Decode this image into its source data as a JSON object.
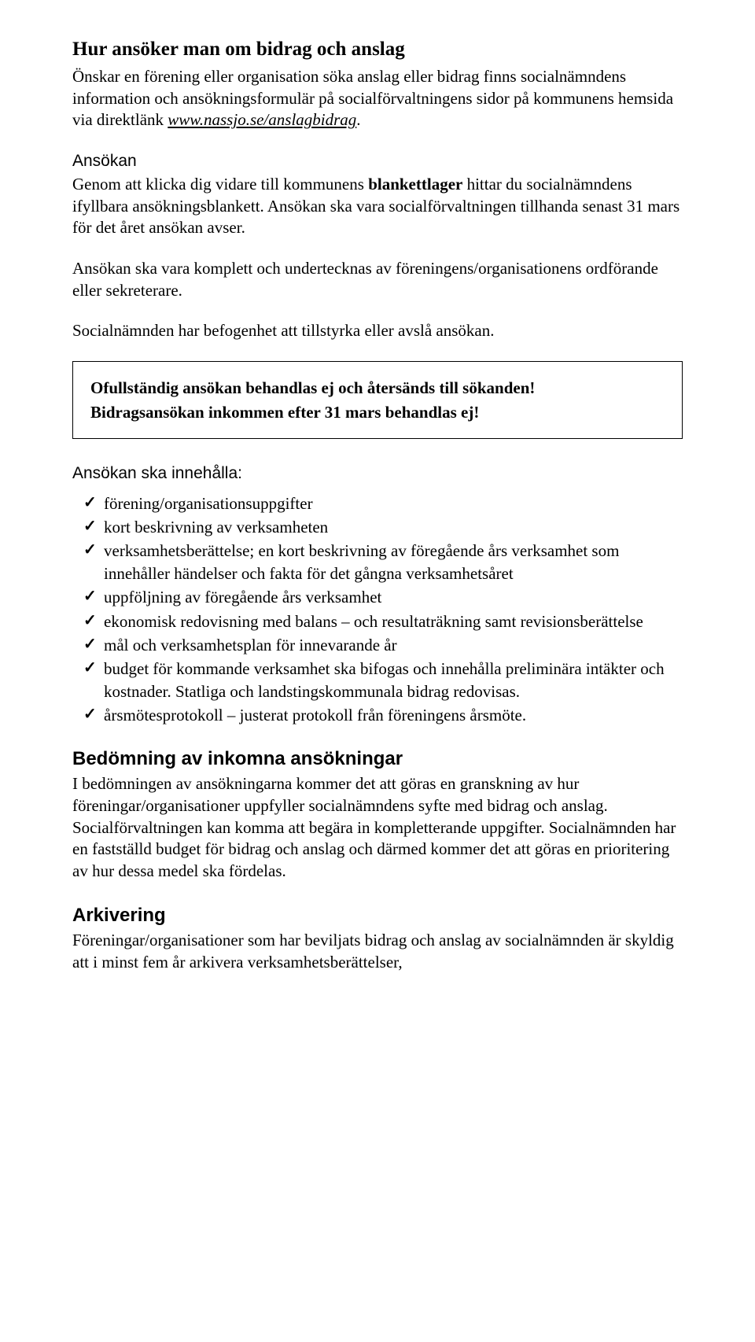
{
  "h1": "Hur ansöker man om bidrag och anslag",
  "intro": {
    "p1_a": "Önskar en förening eller organisation söka anslag eller bidrag finns socialnämndens information och ansökningsformulär på socialförvaltningens sidor på kommunens hemsida via direktlänk ",
    "link": "www.nassjo.se/anslagbidrag",
    "p1_b": "."
  },
  "ansokan": {
    "heading": "Ansökan",
    "p1_a": "Genom att klicka dig vidare till kommunens ",
    "bold1": "blankettlager",
    "p1_b": " hittar du socialnämndens ifyllbara ansökningsblankett. Ansökan ska vara socialförvaltningen tillhanda senast 31 mars för det året ansökan avser.",
    "p2": "Ansökan ska vara komplett och undertecknas av föreningens/organisationens ordförande eller sekreterare.",
    "p3": "Socialnämnden har befogenhet att tillstyrka eller avslå ansökan."
  },
  "callout": {
    "line1": "Ofullständig ansökan behandlas ej och återsänds till sökanden!",
    "line2": "Bidragsansökan inkommen efter 31 mars behandlas ej!"
  },
  "checklist": {
    "heading": "Ansökan ska innehålla:",
    "items": [
      "förening/organisationsuppgifter",
      "kort beskrivning av verksamheten",
      "verksamhetsberättelse; en kort beskrivning av föregående års verksamhet som innehåller händelser och fakta för det gångna verksamhetsåret",
      "uppföljning av föregående års verksamhet",
      "ekonomisk redovisning med balans – och resultaträkning samt revisionsberättelse",
      "mål och verksamhetsplan för innevarande år",
      "budget för kommande verksamhet ska bifogas och innehålla preliminära intäkter och kostnader. Statliga och landstingskommunala bidrag redovisas.",
      "årsmötesprotokoll – justerat protokoll från föreningens årsmöte."
    ]
  },
  "bedomning": {
    "heading": "Bedömning av inkomna ansökningar",
    "p1": "I bedömningen av ansökningarna kommer det att göras en granskning av hur föreningar/organisationer uppfyller socialnämndens syfte med bidrag och anslag. Socialförvaltningen kan komma att begära in kompletterande uppgifter. Socialnämnden har en fastställd budget för bidrag och anslag och därmed kommer det att göras en prioritering av hur dessa medel ska fördelas."
  },
  "arkivering": {
    "heading": "Arkivering",
    "p1": "Föreningar/organisationer som har beviljats bidrag och anslag av socialnämnden är skyldig att i minst fem år arkivera verksamhetsberättelser,"
  },
  "checkmark": "✓"
}
